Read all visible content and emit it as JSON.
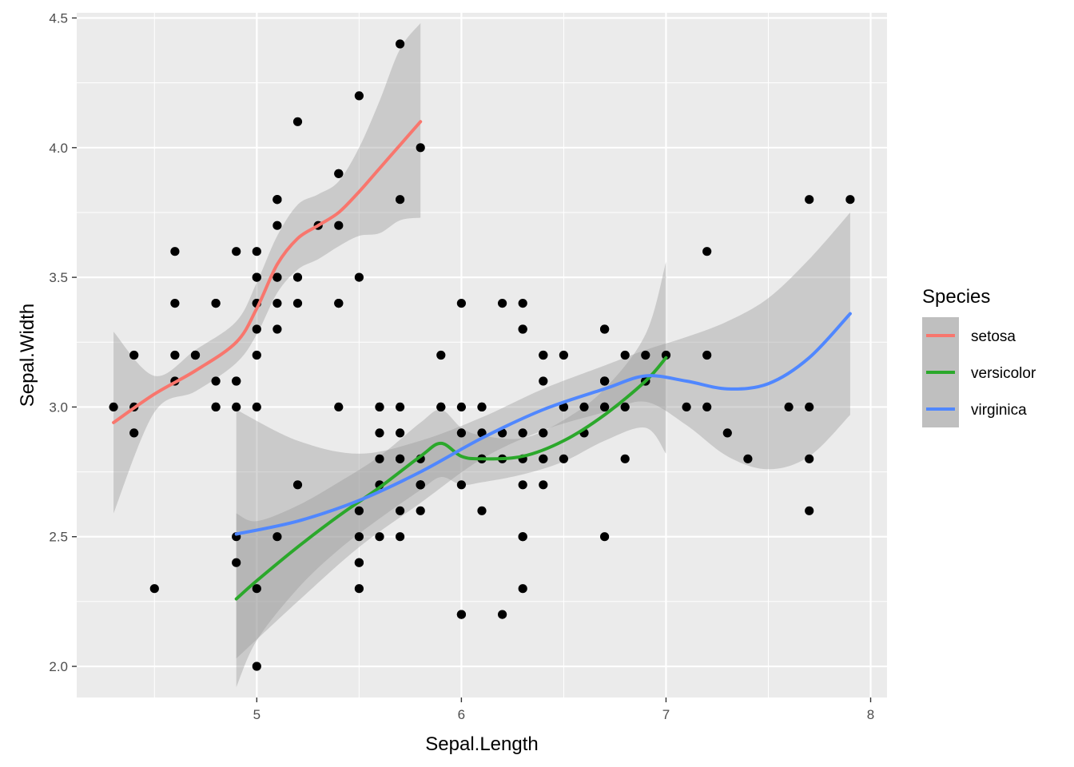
{
  "chart_data": {
    "type": "scatter",
    "xlabel": "Sepal.Length",
    "ylabel": "Sepal.Width",
    "xlim": [
      4.12,
      8.08
    ],
    "ylim": [
      1.88,
      4.52
    ],
    "x_ticks": [
      5,
      6,
      7,
      8
    ],
    "y_ticks": [
      2.0,
      2.5,
      3.0,
      3.5,
      4.0,
      4.5
    ],
    "x_tick_labels": [
      "5",
      "6",
      "7",
      "8"
    ],
    "y_tick_labels": [
      "2.0",
      "2.5",
      "3.0",
      "3.5",
      "4.0",
      "4.5"
    ],
    "grid": true,
    "legend": {
      "title": "Species",
      "position": "right",
      "entries": [
        {
          "label": "setosa",
          "color": "#f8766d"
        },
        {
          "label": "versicolor",
          "color": "#2ba82b"
        },
        {
          "label": "virginica",
          "color": "#5087ff"
        }
      ]
    },
    "points": [
      [
        5.1,
        3.5
      ],
      [
        4.9,
        3.0
      ],
      [
        4.7,
        3.2
      ],
      [
        4.6,
        3.1
      ],
      [
        5.0,
        3.6
      ],
      [
        5.4,
        3.9
      ],
      [
        4.6,
        3.4
      ],
      [
        5.0,
        3.4
      ],
      [
        4.4,
        2.9
      ],
      [
        4.9,
        3.1
      ],
      [
        5.4,
        3.7
      ],
      [
        4.8,
        3.4
      ],
      [
        4.8,
        3.0
      ],
      [
        4.3,
        3.0
      ],
      [
        5.8,
        4.0
      ],
      [
        5.7,
        4.4
      ],
      [
        5.4,
        3.9
      ],
      [
        5.1,
        3.5
      ],
      [
        5.7,
        3.8
      ],
      [
        5.1,
        3.8
      ],
      [
        5.4,
        3.4
      ],
      [
        5.1,
        3.7
      ],
      [
        4.6,
        3.6
      ],
      [
        5.1,
        3.3
      ],
      [
        4.8,
        3.4
      ],
      [
        5.0,
        3.0
      ],
      [
        5.0,
        3.4
      ],
      [
        5.2,
        3.5
      ],
      [
        5.2,
        3.4
      ],
      [
        4.7,
        3.2
      ],
      [
        4.8,
        3.1
      ],
      [
        5.4,
        3.4
      ],
      [
        5.2,
        4.1
      ],
      [
        5.5,
        4.2
      ],
      [
        4.9,
        3.1
      ],
      [
        5.0,
        3.2
      ],
      [
        5.5,
        3.5
      ],
      [
        4.9,
        3.6
      ],
      [
        4.4,
        3.0
      ],
      [
        5.1,
        3.4
      ],
      [
        5.0,
        3.5
      ],
      [
        4.5,
        2.3
      ],
      [
        4.4,
        3.2
      ],
      [
        5.0,
        3.5
      ],
      [
        5.1,
        3.8
      ],
      [
        4.8,
        3.0
      ],
      [
        5.1,
        3.8
      ],
      [
        4.6,
        3.2
      ],
      [
        5.3,
        3.7
      ],
      [
        5.0,
        3.3
      ],
      [
        7.0,
        3.2
      ],
      [
        6.4,
        3.2
      ],
      [
        6.9,
        3.1
      ],
      [
        5.5,
        2.3
      ],
      [
        6.5,
        2.8
      ],
      [
        5.7,
        2.8
      ],
      [
        6.3,
        3.3
      ],
      [
        4.9,
        2.4
      ],
      [
        6.6,
        2.9
      ],
      [
        5.2,
        2.7
      ],
      [
        5.0,
        2.0
      ],
      [
        5.9,
        3.0
      ],
      [
        6.0,
        2.2
      ],
      [
        6.1,
        2.9
      ],
      [
        5.6,
        2.9
      ],
      [
        6.7,
        3.1
      ],
      [
        5.6,
        3.0
      ],
      [
        5.8,
        2.7
      ],
      [
        6.2,
        2.2
      ],
      [
        5.6,
        2.5
      ],
      [
        5.9,
        3.2
      ],
      [
        6.1,
        2.8
      ],
      [
        6.3,
        2.5
      ],
      [
        6.1,
        2.8
      ],
      [
        6.4,
        2.9
      ],
      [
        6.6,
        3.0
      ],
      [
        6.8,
        2.8
      ],
      [
        6.7,
        3.0
      ],
      [
        6.0,
        2.9
      ],
      [
        5.7,
        2.6
      ],
      [
        5.5,
        2.4
      ],
      [
        5.5,
        2.4
      ],
      [
        5.8,
        2.7
      ],
      [
        6.0,
        2.7
      ],
      [
        5.4,
        3.0
      ],
      [
        6.0,
        3.4
      ],
      [
        6.7,
        3.1
      ],
      [
        6.3,
        2.3
      ],
      [
        5.6,
        3.0
      ],
      [
        5.5,
        2.5
      ],
      [
        5.5,
        2.6
      ],
      [
        6.1,
        3.0
      ],
      [
        5.8,
        2.6
      ],
      [
        5.0,
        2.3
      ],
      [
        5.6,
        2.7
      ],
      [
        5.7,
        3.0
      ],
      [
        5.7,
        2.9
      ],
      [
        6.2,
        2.9
      ],
      [
        5.1,
        2.5
      ],
      [
        5.7,
        2.8
      ],
      [
        6.3,
        3.3
      ],
      [
        5.8,
        2.7
      ],
      [
        7.1,
        3.0
      ],
      [
        6.3,
        2.9
      ],
      [
        6.5,
        3.0
      ],
      [
        7.6,
        3.0
      ],
      [
        4.9,
        2.5
      ],
      [
        7.3,
        2.9
      ],
      [
        6.7,
        2.5
      ],
      [
        7.2,
        3.6
      ],
      [
        6.5,
        3.2
      ],
      [
        6.4,
        2.7
      ],
      [
        6.8,
        3.0
      ],
      [
        5.7,
        2.5
      ],
      [
        5.8,
        2.8
      ],
      [
        6.4,
        3.2
      ],
      [
        6.5,
        3.0
      ],
      [
        7.7,
        3.8
      ],
      [
        7.7,
        2.6
      ],
      [
        6.0,
        2.2
      ],
      [
        6.9,
        3.2
      ],
      [
        5.6,
        2.8
      ],
      [
        7.7,
        2.8
      ],
      [
        6.3,
        2.7
      ],
      [
        6.7,
        3.3
      ],
      [
        7.2,
        3.2
      ],
      [
        6.2,
        2.8
      ],
      [
        6.1,
        3.0
      ],
      [
        6.4,
        2.8
      ],
      [
        7.2,
        3.0
      ],
      [
        7.4,
        2.8
      ],
      [
        7.9,
        3.8
      ],
      [
        6.4,
        2.8
      ],
      [
        6.3,
        2.8
      ],
      [
        6.1,
        2.6
      ],
      [
        7.7,
        3.0
      ],
      [
        6.3,
        3.4
      ],
      [
        6.4,
        3.1
      ],
      [
        6.0,
        3.0
      ],
      [
        6.9,
        3.1
      ],
      [
        6.7,
        3.1
      ],
      [
        6.9,
        3.1
      ],
      [
        5.8,
        2.7
      ],
      [
        6.8,
        3.2
      ],
      [
        6.7,
        3.3
      ],
      [
        6.7,
        3.0
      ],
      [
        6.3,
        2.5
      ],
      [
        6.5,
        3.0
      ],
      [
        6.2,
        3.4
      ],
      [
        5.9,
        3.0
      ]
    ],
    "series": [
      {
        "name": "setosa",
        "color": "#f8766d",
        "fit": [
          [
            4.3,
            2.94
          ],
          [
            4.5,
            3.05
          ],
          [
            4.7,
            3.14
          ],
          [
            4.9,
            3.25
          ],
          [
            5.0,
            3.38
          ],
          [
            5.1,
            3.55
          ],
          [
            5.2,
            3.65
          ],
          [
            5.3,
            3.7
          ],
          [
            5.4,
            3.75
          ],
          [
            5.5,
            3.83
          ],
          [
            5.6,
            3.92
          ],
          [
            5.7,
            4.01
          ],
          [
            5.8,
            4.1
          ]
        ],
        "band_upper": [
          [
            4.3,
            3.29
          ],
          [
            4.5,
            3.12
          ],
          [
            4.7,
            3.22
          ],
          [
            4.9,
            3.33
          ],
          [
            5.0,
            3.48
          ],
          [
            5.1,
            3.66
          ],
          [
            5.2,
            3.78
          ],
          [
            5.3,
            3.82
          ],
          [
            5.4,
            3.87
          ],
          [
            5.5,
            4.0
          ],
          [
            5.6,
            4.18
          ],
          [
            5.7,
            4.38
          ],
          [
            5.8,
            4.48
          ]
        ],
        "band_lower": [
          [
            4.3,
            2.59
          ],
          [
            4.5,
            2.98
          ],
          [
            4.7,
            3.06
          ],
          [
            4.9,
            3.17
          ],
          [
            5.0,
            3.28
          ],
          [
            5.1,
            3.44
          ],
          [
            5.2,
            3.53
          ],
          [
            5.3,
            3.57
          ],
          [
            5.4,
            3.62
          ],
          [
            5.5,
            3.66
          ],
          [
            5.6,
            3.67
          ],
          [
            5.7,
            3.72
          ],
          [
            5.8,
            3.73
          ]
        ]
      },
      {
        "name": "versicolor",
        "color": "#2ba82b",
        "fit": [
          [
            4.9,
            2.26
          ],
          [
            5.0,
            2.33
          ],
          [
            5.2,
            2.46
          ],
          [
            5.4,
            2.58
          ],
          [
            5.6,
            2.69
          ],
          [
            5.8,
            2.81
          ],
          [
            5.9,
            2.86
          ],
          [
            6.0,
            2.81
          ],
          [
            6.1,
            2.8
          ],
          [
            6.3,
            2.81
          ],
          [
            6.5,
            2.87
          ],
          [
            6.7,
            2.97
          ],
          [
            6.9,
            3.1
          ],
          [
            7.0,
            3.19
          ]
        ],
        "band_upper": [
          [
            4.9,
            2.59
          ],
          [
            5.0,
            2.56
          ],
          [
            5.2,
            2.62
          ],
          [
            5.4,
            2.71
          ],
          [
            5.6,
            2.81
          ],
          [
            5.8,
            2.94
          ],
          [
            5.9,
            2.99
          ],
          [
            6.0,
            2.92
          ],
          [
            6.1,
            2.89
          ],
          [
            6.3,
            2.88
          ],
          [
            6.5,
            2.95
          ],
          [
            6.7,
            3.07
          ],
          [
            6.9,
            3.28
          ],
          [
            7.0,
            3.56
          ]
        ],
        "band_lower": [
          [
            4.9,
            1.92
          ],
          [
            5.0,
            2.1
          ],
          [
            5.2,
            2.3
          ],
          [
            5.4,
            2.45
          ],
          [
            5.6,
            2.57
          ],
          [
            5.8,
            2.68
          ],
          [
            5.9,
            2.73
          ],
          [
            6.0,
            2.7
          ],
          [
            6.1,
            2.71
          ],
          [
            6.3,
            2.74
          ],
          [
            6.5,
            2.79
          ],
          [
            6.7,
            2.87
          ],
          [
            6.9,
            2.92
          ],
          [
            7.0,
            2.82
          ]
        ]
      },
      {
        "name": "virginica",
        "color": "#5087ff",
        "fit": [
          [
            4.9,
            2.51
          ],
          [
            5.2,
            2.56
          ],
          [
            5.5,
            2.64
          ],
          [
            5.8,
            2.75
          ],
          [
            6.1,
            2.88
          ],
          [
            6.4,
            2.99
          ],
          [
            6.7,
            3.07
          ],
          [
            6.9,
            3.12
          ],
          [
            7.1,
            3.1
          ],
          [
            7.3,
            3.07
          ],
          [
            7.5,
            3.09
          ],
          [
            7.7,
            3.19
          ],
          [
            7.9,
            3.36
          ]
        ],
        "band_upper": [
          [
            4.9,
            2.99
          ],
          [
            5.2,
            2.87
          ],
          [
            5.5,
            2.82
          ],
          [
            5.8,
            2.87
          ],
          [
            6.1,
            2.96
          ],
          [
            6.4,
            3.07
          ],
          [
            6.7,
            3.16
          ],
          [
            6.9,
            3.22
          ],
          [
            7.1,
            3.27
          ],
          [
            7.3,
            3.33
          ],
          [
            7.5,
            3.42
          ],
          [
            7.7,
            3.57
          ],
          [
            7.9,
            3.75
          ]
        ],
        "band_lower": [
          [
            4.9,
            2.03
          ],
          [
            5.2,
            2.25
          ],
          [
            5.5,
            2.46
          ],
          [
            5.8,
            2.63
          ],
          [
            6.1,
            2.8
          ],
          [
            6.4,
            2.91
          ],
          [
            6.7,
            2.98
          ],
          [
            6.9,
            3.02
          ],
          [
            7.1,
            2.93
          ],
          [
            7.3,
            2.81
          ],
          [
            7.5,
            2.76
          ],
          [
            7.7,
            2.81
          ],
          [
            7.9,
            2.97
          ]
        ]
      }
    ]
  }
}
